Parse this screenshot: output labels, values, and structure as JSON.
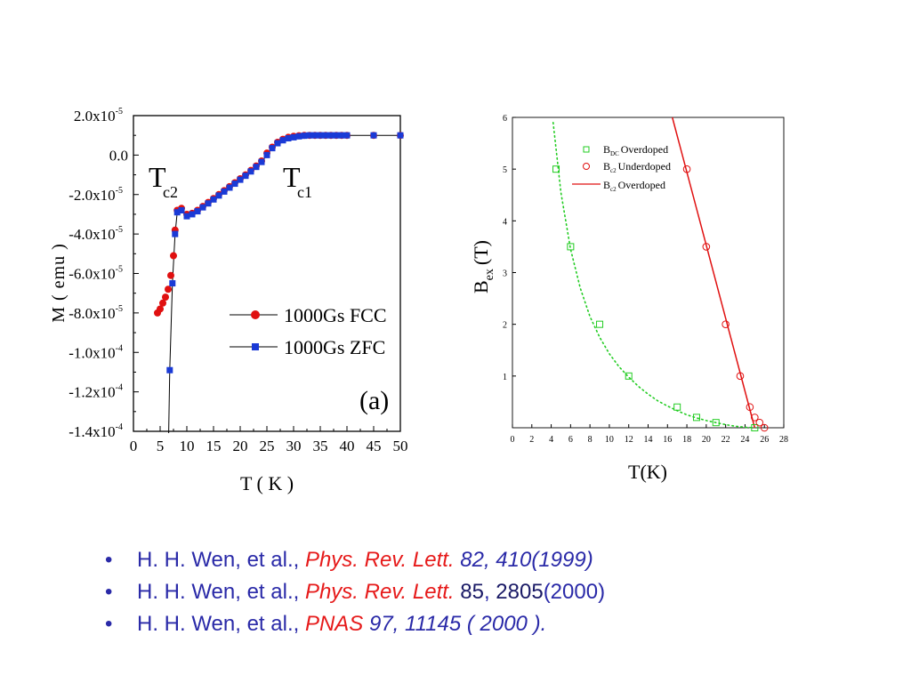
{
  "chart_data": [
    {
      "type": "scatter",
      "xlabel": "T ( K )",
      "ylabel": "M ( emu )",
      "xlim": [
        0,
        50
      ],
      "ylim": [
        -0.00014,
        2e-05
      ],
      "x_ticks": [
        "0",
        "5",
        "10",
        "15",
        "20",
        "25",
        "30",
        "35",
        "40",
        "45",
        "50"
      ],
      "y_ticks": [
        {
          "value": 2e-05,
          "mant": "2.0x10",
          "exp": "-5"
        },
        {
          "value": 0,
          "mant": "0.0",
          "exp": ""
        },
        {
          "value": -2e-05,
          "mant": "-2.0x10",
          "exp": "-5"
        },
        {
          "value": -4e-05,
          "mant": "-4.0x10",
          "exp": "-5"
        },
        {
          "value": -6e-05,
          "mant": "-6.0x10",
          "exp": "-5"
        },
        {
          "value": -8e-05,
          "mant": "-8.0x10",
          "exp": "-5"
        },
        {
          "value": -0.0001,
          "mant": "-1.0x10",
          "exp": "-4"
        },
        {
          "value": -0.00012,
          "mant": "-1.2x10",
          "exp": "-4"
        },
        {
          "value": -0.00014,
          "mant": "-1.4x10",
          "exp": "-4"
        }
      ],
      "annotations": {
        "tc2_main": "T",
        "tc2_sub": "c2",
        "tc1_main": "T",
        "tc1_sub": "c1",
        "panel": "(a)"
      },
      "legend_position": "bottom-right",
      "series": [
        {
          "name": "1000Gs FCC",
          "marker": "circle",
          "color": "#e01010",
          "x": [
            4.5,
            5.0,
            5.5,
            6.0,
            6.5,
            7.0,
            7.5,
            7.8,
            8.2,
            9,
            10,
            11,
            12,
            13,
            14,
            15,
            16,
            17,
            18,
            19,
            20,
            21,
            22,
            23,
            24,
            25,
            26,
            27,
            28,
            29,
            30,
            31,
            32,
            33,
            34,
            35,
            36,
            37,
            38,
            39,
            40,
            45,
            50
          ],
          "y": [
            -8e-05,
            -7.8e-05,
            -7.5e-05,
            -7.2e-05,
            -6.8e-05,
            -6.1e-05,
            -5.1e-05,
            -3.8e-05,
            -2.8e-05,
            -2.7e-05,
            -3e-05,
            -2.95e-05,
            -2.8e-05,
            -2.6e-05,
            -2.4e-05,
            -2.2e-05,
            -2e-05,
            -1.8e-05,
            -1.6e-05,
            -1.4e-05,
            -1.2e-05,
            -1e-05,
            -7.8e-06,
            -5.5e-06,
            -3e-06,
            1e-06,
            4e-06,
            6.5e-06,
            8e-06,
            9e-06,
            9.5e-06,
            9.8e-06,
            1e-05,
            1e-05,
            1e-05,
            1e-05,
            1e-05,
            1e-05,
            1e-05,
            1e-05,
            1e-05,
            1e-05,
            1e-05
          ]
        },
        {
          "name": "1000Gs ZFC",
          "marker": "square",
          "color": "#1a3ad6",
          "x": [
            6.8,
            7.3,
            7.8,
            8.2,
            9,
            10,
            11,
            12,
            13,
            14,
            15,
            16,
            17,
            18,
            19,
            20,
            21,
            22,
            23,
            24,
            25,
            26,
            27,
            28,
            29,
            30,
            31,
            32,
            33,
            34,
            35,
            36,
            37,
            38,
            39,
            40,
            45,
            50
          ],
          "y": [
            -0.000109,
            -6.5e-05,
            -4e-05,
            -2.9e-05,
            -2.8e-05,
            -3.1e-05,
            -3e-05,
            -2.85e-05,
            -2.65e-05,
            -2.45e-05,
            -2.25e-05,
            -2.05e-05,
            -1.85e-05,
            -1.65e-05,
            -1.45e-05,
            -1.25e-05,
            -1.05e-05,
            -8.3e-06,
            -6e-06,
            -3.5e-06,
            0,
            3.5e-06,
            6e-06,
            7.5e-06,
            8.5e-06,
            9e-06,
            9.5e-06,
            9.8e-06,
            1e-05,
            1e-05,
            1e-05,
            1e-05,
            1e-05,
            1e-05,
            1e-05,
            1e-05,
            1e-05,
            1e-05
          ]
        }
      ]
    },
    {
      "type": "scatter",
      "xlabel": "T(K)",
      "ylabel_main": "B",
      "ylabel_sub": "ex",
      "ylabel_tail": "(T)",
      "xlim": [
        0,
        28
      ],
      "ylim": [
        0,
        6
      ],
      "x_ticks": [
        "0",
        "2",
        "4",
        "6",
        "8",
        "10",
        "12",
        "14",
        "16",
        "18",
        "20",
        "22",
        "24",
        "26",
        "28"
      ],
      "y_ticks": [
        "1",
        "2",
        "3",
        "4",
        "5",
        "6"
      ],
      "legend_position": "top-right",
      "series": [
        {
          "name_main": "B",
          "name_sub": "DC",
          "name_tail": "Overdoped",
          "marker": "open-square",
          "color": "#22cc22",
          "x": [
            4.5,
            6,
            9,
            12,
            17,
            19,
            21,
            25
          ],
          "y": [
            5.0,
            3.5,
            2.0,
            1.0,
            0.4,
            0.2,
            0.1,
            0.0
          ]
        },
        {
          "name_main": "B",
          "name_sub": "c2",
          "name_tail": "Underdoped",
          "marker": "open-circle",
          "color": "#e01010",
          "x": [
            18,
            20,
            22,
            23.5,
            24.5,
            25,
            25.5,
            26
          ],
          "y": [
            5.0,
            3.5,
            2.0,
            1.0,
            0.4,
            0.2,
            0.1,
            0.0
          ]
        },
        {
          "name_main": "B",
          "name_sub": "c2",
          "name_tail": "Overdoped",
          "marker": "line",
          "color": "#e01010",
          "x": [
            16.5,
            25
          ],
          "y": [
            6.0,
            0.0
          ]
        }
      ],
      "green_fit": {
        "x": [
          4.2,
          5,
          6,
          7,
          8,
          9,
          10,
          11,
          12,
          13,
          14,
          15,
          16,
          17,
          18,
          19,
          20,
          21,
          22,
          23,
          24,
          25
        ],
        "y": [
          5.9,
          4.55,
          3.45,
          2.7,
          2.15,
          1.75,
          1.43,
          1.18,
          0.98,
          0.8,
          0.65,
          0.52,
          0.42,
          0.33,
          0.25,
          0.19,
          0.14,
          0.1,
          0.06,
          0.03,
          0.01,
          0.0
        ]
      }
    }
  ],
  "references": [
    {
      "authors": "H. H. Wen, et al., ",
      "journal": "Phys. Rev. Lett.",
      "rest": " 82, 410(1999)"
    },
    {
      "authors": "H. H. Wen, et al., ",
      "journal": "Phys. Rev. Lett.",
      "vol": " 85",
      "comma": ", ",
      "page": "2805",
      "year": "(2000)"
    },
    {
      "authors": "H. H. Wen, et al., ",
      "journal": "PNAS",
      "rest": " 97, 11145 ( 2000 )."
    }
  ]
}
